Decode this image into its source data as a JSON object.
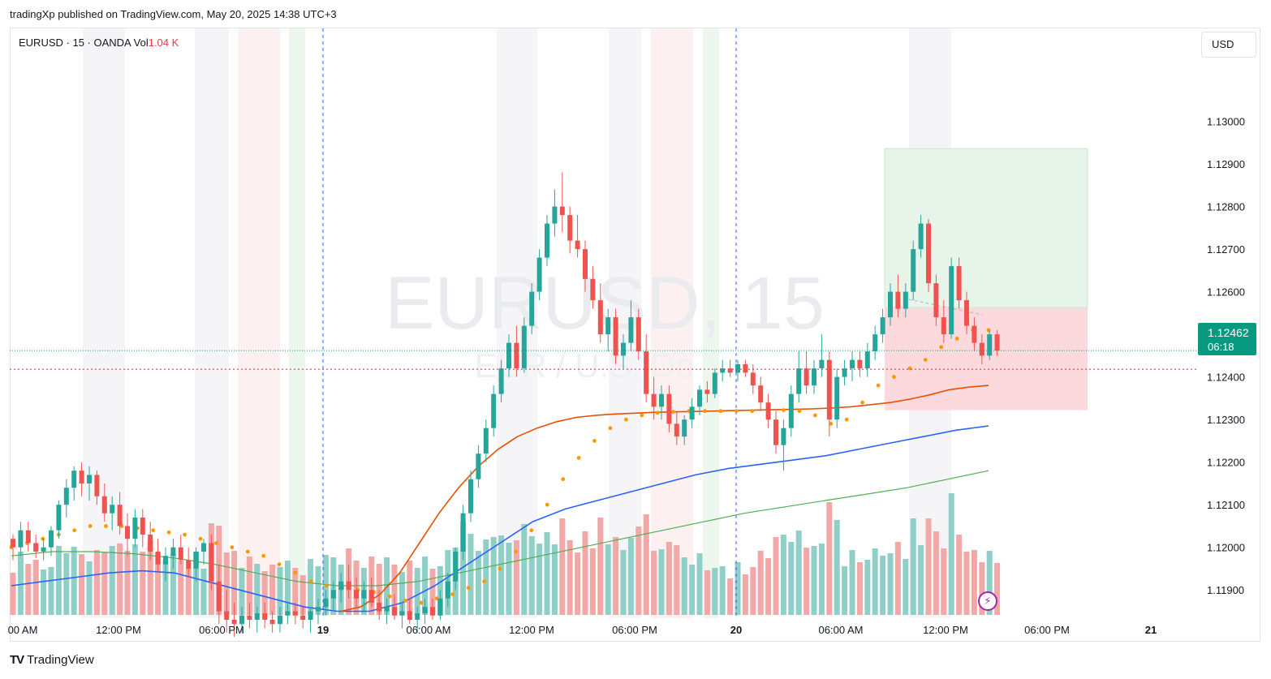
{
  "publisher": "tradingXp published on TradingView.com, May 20, 2025 14:38 UTC+3",
  "legend": {
    "symbol": "EURUSD",
    "interval": "15",
    "source": "OANDA",
    "vol_label": "Vol",
    "vol_value": "1.04 K"
  },
  "currency": "USD",
  "watermark": {
    "main": "EURUSD, 15",
    "sub": "EUR / U.S. Do"
  },
  "last_price": {
    "value": "1.12462",
    "countdown": "06:18"
  },
  "brand": "TradingView",
  "colors": {
    "up": "#26a69a",
    "down": "#ef5350",
    "ema_fast": "#ff9800",
    "ema_mid": "#e65100",
    "ema_blue": "#2962ff",
    "ema_green": "#4caf50",
    "label_bg": "#089981"
  },
  "chart_data": {
    "type": "candlestick",
    "symbol": "EURUSD",
    "interval": "15",
    "ylim": [
      1.1183,
      1.1318
    ],
    "y_ticks": [
      "1.13000",
      "1.12900",
      "1.12800",
      "1.12700",
      "1.12600",
      "1.12500",
      "1.12400",
      "1.12300",
      "1.12200",
      "1.12100",
      "1.12000",
      "1.11900"
    ],
    "x_ticks": [
      "00 AM",
      "12:00 PM",
      "06:00 PM",
      "19",
      "06:00 AM",
      "12:00 PM",
      "06:00 PM",
      "20",
      "06:00 AM",
      "12:00 PM",
      "06:00 PM",
      "21"
    ],
    "last_price": 1.12462,
    "red_dotted_level": 1.12418,
    "position_tool": {
      "target": 1.12936,
      "entry": 1.12563,
      "stop": 1.12322
    },
    "candles": [
      [
        1.1202,
        1.1203,
        1.1197,
        1.12
      ],
      [
        1.12,
        1.1206,
        1.1198,
        1.1204
      ],
      [
        1.1204,
        1.1206,
        1.1199,
        1.1201
      ],
      [
        1.1201,
        1.1203,
        1.11975,
        1.1199
      ],
      [
        1.1199,
        1.1202,
        1.1197,
        1.12
      ],
      [
        1.12,
        1.1205,
        1.1198,
        1.1204
      ],
      [
        1.1204,
        1.1211,
        1.1202,
        1.121
      ],
      [
        1.121,
        1.1216,
        1.1207,
        1.1214
      ],
      [
        1.1214,
        1.1219,
        1.1211,
        1.1218
      ],
      [
        1.1218,
        1.122,
        1.1212,
        1.1215
      ],
      [
        1.1215,
        1.1219,
        1.1211,
        1.1217
      ],
      [
        1.1217,
        1.1218,
        1.121,
        1.1212
      ],
      [
        1.1212,
        1.1215,
        1.1206,
        1.1208
      ],
      [
        1.1208,
        1.1212,
        1.1204,
        1.121
      ],
      [
        1.121,
        1.1213,
        1.1203,
        1.1205
      ],
      [
        1.1205,
        1.1208,
        1.1198,
        1.1202
      ],
      [
        1.1202,
        1.1209,
        1.12,
        1.1207
      ],
      [
        1.1207,
        1.1209,
        1.12,
        1.1203
      ],
      [
        1.1203,
        1.1206,
        1.1197,
        1.1199
      ],
      [
        1.1199,
        1.1202,
        1.1194,
        1.1196
      ],
      [
        1.1196,
        1.12,
        1.1192,
        1.1198
      ],
      [
        1.1198,
        1.1202,
        1.1195,
        1.12
      ],
      [
        1.12,
        1.1203,
        1.1196,
        1.1197
      ],
      [
        1.1197,
        1.12,
        1.1193,
        1.1195
      ],
      [
        1.1195,
        1.12,
        1.1192,
        1.1199
      ],
      [
        1.1199,
        1.1202,
        1.1196,
        1.1201
      ],
      [
        1.1201,
        1.1203,
        1.119,
        1.1192
      ],
      [
        1.1192,
        1.1196,
        1.1182,
        1.1185
      ],
      [
        1.1185,
        1.119,
        1.118,
        1.1183
      ],
      [
        1.1183,
        1.1187,
        1.1179,
        1.1182
      ],
      [
        1.1182,
        1.1186,
        1.118,
        1.1184
      ],
      [
        1.1184,
        1.1187,
        1.1181,
        1.1183
      ],
      [
        1.1183,
        1.1186,
        1.118,
        1.11845
      ],
      [
        1.11845,
        1.1187,
        1.1181,
        1.1183
      ],
      [
        1.1183,
        1.1185,
        1.118,
        1.1182
      ],
      [
        1.1182,
        1.1186,
        1.118,
        1.1184
      ],
      [
        1.1184,
        1.1187,
        1.1182,
        1.1185
      ],
      [
        1.1185,
        1.1187,
        1.1182,
        1.1184
      ],
      [
        1.1184,
        1.1186,
        1.1181,
        1.1183
      ],
      [
        1.1183,
        1.1186,
        1.118,
        1.1185
      ],
      [
        1.1185,
        1.1188,
        1.1182,
        1.1186
      ],
      [
        1.1186,
        1.119,
        1.1184,
        1.1188
      ],
      [
        1.1188,
        1.1192,
        1.1185,
        1.119
      ],
      [
        1.119,
        1.1194,
        1.1187,
        1.1192
      ],
      [
        1.1192,
        1.1196,
        1.1188,
        1.119
      ],
      [
        1.119,
        1.1193,
        1.1186,
        1.1188
      ],
      [
        1.1188,
        1.1192,
        1.1185,
        1.119
      ],
      [
        1.119,
        1.1193,
        1.1186,
        1.1187
      ],
      [
        1.1187,
        1.119,
        1.1183,
        1.1185
      ],
      [
        1.1185,
        1.1188,
        1.1182,
        1.1186
      ],
      [
        1.1186,
        1.1189,
        1.1183,
        1.1184
      ],
      [
        1.1184,
        1.1187,
        1.1181,
        1.1185
      ],
      [
        1.1185,
        1.1188,
        1.1182,
        1.1183
      ],
      [
        1.1183,
        1.1186,
        1.118,
        1.11845
      ],
      [
        1.11845,
        1.1188,
        1.1182,
        1.1186
      ],
      [
        1.1186,
        1.1188,
        1.1183,
        1.1184
      ],
      [
        1.1184,
        1.119,
        1.1183,
        1.1188
      ],
      [
        1.1188,
        1.1194,
        1.1186,
        1.1192
      ],
      [
        1.1192,
        1.12,
        1.119,
        1.1199
      ],
      [
        1.1199,
        1.121,
        1.1197,
        1.1208
      ],
      [
        1.1208,
        1.1218,
        1.1206,
        1.1216
      ],
      [
        1.1216,
        1.1224,
        1.1214,
        1.1222
      ],
      [
        1.1222,
        1.123,
        1.122,
        1.1228
      ],
      [
        1.1228,
        1.1238,
        1.1226,
        1.1236
      ],
      [
        1.1236,
        1.1244,
        1.1234,
        1.1242
      ],
      [
        1.1242,
        1.125,
        1.124,
        1.1248
      ],
      [
        1.1248,
        1.1252,
        1.124,
        1.1242
      ],
      [
        1.1242,
        1.1254,
        1.1241,
        1.1252
      ],
      [
        1.1252,
        1.1262,
        1.125,
        1.126
      ],
      [
        1.126,
        1.127,
        1.1258,
        1.1268
      ],
      [
        1.1268,
        1.1278,
        1.1266,
        1.1276
      ],
      [
        1.1276,
        1.1284,
        1.1273,
        1.128
      ],
      [
        1.128,
        1.1288,
        1.1274,
        1.1278
      ],
      [
        1.1278,
        1.128,
        1.1269,
        1.1272
      ],
      [
        1.1272,
        1.1278,
        1.1268,
        1.127
      ],
      [
        1.127,
        1.1272,
        1.126,
        1.1263
      ],
      [
        1.1263,
        1.1266,
        1.1256,
        1.1258
      ],
      [
        1.1258,
        1.1262,
        1.1248,
        1.125
      ],
      [
        1.125,
        1.1256,
        1.1246,
        1.1254
      ],
      [
        1.1254,
        1.1256,
        1.1243,
        1.1245
      ],
      [
        1.1245,
        1.125,
        1.1242,
        1.1248
      ],
      [
        1.1248,
        1.1258,
        1.1246,
        1.1254
      ],
      [
        1.1254,
        1.1256,
        1.1244,
        1.1246
      ],
      [
        1.1246,
        1.125,
        1.1234,
        1.1236
      ],
      [
        1.1236,
        1.124,
        1.123,
        1.1233
      ],
      [
        1.1233,
        1.1238,
        1.123,
        1.1236
      ],
      [
        1.1236,
        1.1238,
        1.1227,
        1.1229
      ],
      [
        1.1229,
        1.1232,
        1.1224,
        1.1226
      ],
      [
        1.1226,
        1.1231,
        1.1224,
        1.123
      ],
      [
        1.123,
        1.1235,
        1.1228,
        1.1233
      ],
      [
        1.1233,
        1.1238,
        1.1231,
        1.1237
      ],
      [
        1.1237,
        1.1239,
        1.1234,
        1.1236
      ],
      [
        1.1236,
        1.1242,
        1.1235,
        1.1241
      ],
      [
        1.1241,
        1.1244,
        1.1239,
        1.1242
      ],
      [
        1.1242,
        1.1244,
        1.124,
        1.1241
      ],
      [
        1.1241,
        1.1244,
        1.1239,
        1.1243
      ],
      [
        1.1243,
        1.1244,
        1.124,
        1.1241
      ],
      [
        1.1241,
        1.1243,
        1.1236,
        1.1238
      ],
      [
        1.1238,
        1.124,
        1.1232,
        1.1234
      ],
      [
        1.1234,
        1.1236,
        1.1228,
        1.123
      ],
      [
        1.123,
        1.1232,
        1.1222,
        1.1224
      ],
      [
        1.1224,
        1.123,
        1.1218,
        1.1228
      ],
      [
        1.1228,
        1.1238,
        1.1226,
        1.1236
      ],
      [
        1.1236,
        1.1246,
        1.1234,
        1.1242
      ],
      [
        1.1242,
        1.1246,
        1.1236,
        1.1238
      ],
      [
        1.1238,
        1.1244,
        1.1236,
        1.1242
      ],
      [
        1.1242,
        1.125,
        1.124,
        1.1244
      ],
      [
        1.1244,
        1.1246,
        1.1226,
        1.123
      ],
      [
        1.123,
        1.1242,
        1.1228,
        1.124
      ],
      [
        1.124,
        1.1244,
        1.1238,
        1.1242
      ],
      [
        1.1242,
        1.1246,
        1.1239,
        1.1244
      ],
      [
        1.1244,
        1.1246,
        1.124,
        1.1242
      ],
      [
        1.1242,
        1.1248,
        1.124,
        1.1246
      ],
      [
        1.1246,
        1.1252,
        1.1244,
        1.125
      ],
      [
        1.125,
        1.1256,
        1.1248,
        1.1254
      ],
      [
        1.1254,
        1.1262,
        1.1252,
        1.126
      ],
      [
        1.126,
        1.1264,
        1.1254,
        1.1256
      ],
      [
        1.1256,
        1.1262,
        1.1254,
        1.126
      ],
      [
        1.126,
        1.1272,
        1.1258,
        1.127
      ],
      [
        1.127,
        1.1278,
        1.1268,
        1.1276
      ],
      [
        1.1276,
        1.1277,
        1.126,
        1.1262
      ],
      [
        1.1262,
        1.1264,
        1.1252,
        1.1254
      ],
      [
        1.1254,
        1.1258,
        1.1248,
        1.125
      ],
      [
        1.125,
        1.1268,
        1.1249,
        1.1266
      ],
      [
        1.1266,
        1.1268,
        1.1256,
        1.1258
      ],
      [
        1.1258,
        1.126,
        1.125,
        1.1252
      ],
      [
        1.1252,
        1.1254,
        1.1246,
        1.1248
      ],
      [
        1.1248,
        1.125,
        1.1243,
        1.1245
      ],
      [
        1.1245,
        1.1251,
        1.1244,
        1.125
      ],
      [
        1.125,
        1.1251,
        1.1245,
        1.12462
      ]
    ],
    "ema_fast": [
      1.12,
      1.1201,
      1.1202,
      1.1203,
      1.1204,
      1.1205,
      1.1205,
      1.1205,
      1.12045,
      1.1204,
      1.12035,
      1.1203,
      1.1202,
      1.1201,
      1.12,
      1.1199,
      1.1198,
      1.1196,
      1.1194,
      1.1192,
      1.1191,
      1.11905,
      1.119,
      1.11895,
      1.11885,
      1.11875,
      1.1187,
      1.1188,
      1.1189,
      1.11905,
      1.1192,
      1.1195,
      1.1199,
      1.1204,
      1.121,
      1.1216,
      1.1221,
      1.1225,
      1.1228,
      1.123,
      1.1231,
      1.12316,
      1.12318,
      1.1232,
      1.1232,
      1.1232,
      1.1232,
      1.1232,
      1.12321,
      1.12322,
      1.1232,
      1.1231,
      1.1229,
      1.123,
      1.1234,
      1.1238,
      1.124,
      1.1242,
      1.1244,
      1.1247,
      1.1249,
      1.1251,
      1.1251
    ],
    "ema_mid": [
      1.1185,
      1.1186,
      1.1189,
      1.1194,
      1.1201,
      1.1208,
      1.1214,
      1.1219,
      1.1223,
      1.1226,
      1.1228,
      1.12295,
      1.12305,
      1.1231,
      1.12313,
      1.12315,
      1.12317,
      1.12318,
      1.12319,
      1.1232,
      1.12321,
      1.12322,
      1.12323,
      1.12324,
      1.12325,
      1.12327,
      1.1233,
      1.12335,
      1.1234,
      1.12348,
      1.12358,
      1.1237,
      1.12376,
      1.1238
    ],
    "ema_blue": [
      1.1191,
      1.1192,
      1.1193,
      1.1194,
      1.11945,
      1.1194,
      1.1192,
      1.119,
      1.1188,
      1.1186,
      1.1185,
      1.1185,
      1.1187,
      1.1191,
      1.1196,
      1.1201,
      1.1206,
      1.1209,
      1.1211,
      1.1213,
      1.1215,
      1.1217,
      1.12185,
      1.12195,
      1.12205,
      1.12215,
      1.1223,
      1.12245,
      1.1226,
      1.12275,
      1.12285
    ],
    "ema_green": [
      1.1198,
      1.1199,
      1.1199,
      1.11985,
      1.11975,
      1.1196,
      1.1194,
      1.1192,
      1.1191,
      1.1191,
      1.1192,
      1.1194,
      1.1196,
      1.1198,
      1.12,
      1.1202,
      1.1204,
      1.1206,
      1.1208,
      1.12095,
      1.1211,
      1.12125,
      1.1214,
      1.1216,
      1.1218
    ]
  }
}
